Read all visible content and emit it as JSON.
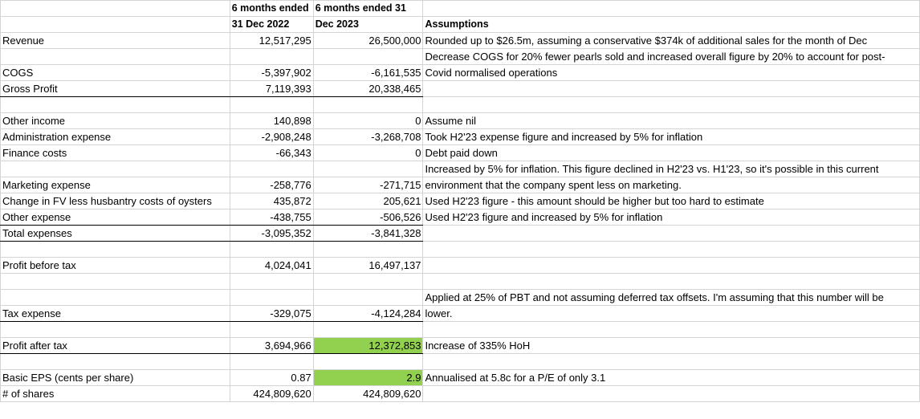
{
  "headers": {
    "col_b": [
      "6 months ended",
      "31 Dec 2022"
    ],
    "col_c": [
      "6 months ended 31",
      "Dec 2023"
    ],
    "col_d": "Assumptions"
  },
  "rows": {
    "revenue": {
      "label": "Revenue",
      "h1": "12,517,295",
      "h2": "26,500,000",
      "note": "Rounded up to $26.5m, assuming a conservative $374k of additional sales for the month of Dec"
    },
    "cogs": {
      "label": "COGS",
      "h1": "-5,397,902",
      "h2": "-6,161,535",
      "note1": "Decrease COGS for 20% fewer pearls sold and increased overall figure by 20% to account for post-",
      "note2": "Covid normalised operations"
    },
    "gross_profit": {
      "label": "Gross Profit",
      "h1": "7,119,393",
      "h2": "20,338,465"
    },
    "other_income": {
      "label": "Other income",
      "h1": "140,898",
      "h2": "0",
      "note": "Assume nil"
    },
    "admin": {
      "label": "Administration expense",
      "h1": "-2,908,248",
      "h2": "-3,268,708",
      "note": "Took H2'23 expense figure and increased by 5% for inflation"
    },
    "finance": {
      "label": "Finance costs",
      "h1": "-66,343",
      "h2": "0",
      "note": "Debt paid down"
    },
    "marketing": {
      "label": "Marketing expense",
      "h1": "-258,776",
      "h2": "-271,715",
      "note1": "Increased by 5% for inflation. This figure declined in H2'23 vs. H1'23, so it's possible in this current",
      "note2": "environment that the company spent less on marketing."
    },
    "fv_change": {
      "label": "Change in FV less husbantry costs of oysters",
      "h1": "435,872",
      "h2": "205,621",
      "note": "Used H2'23 figure - this amount should be higher but too hard to estimate"
    },
    "other_exp": {
      "label": "Other expense",
      "h1": "-438,755",
      "h2": "-506,526",
      "note": "Used H2'23 figure and increased by 5% for inflation"
    },
    "total_exp": {
      "label": "Total expenses",
      "h1": "-3,095,352",
      "h2": "-3,841,328"
    },
    "pbt": {
      "label": "Profit before tax",
      "h1": "4,024,041",
      "h2": "16,497,137"
    },
    "tax": {
      "label": "Tax expense",
      "h1": "-329,075",
      "h2": "-4,124,284",
      "note1": "Applied at 25% of PBT and not assuming deferred tax offsets. I'm assuming that this number will be",
      "note2": "lower."
    },
    "pat": {
      "label": "Profit after tax",
      "h1": "3,694,966",
      "h2": "12,372,853",
      "note": "Increase of 335% HoH"
    },
    "eps": {
      "label": "Basic EPS (cents per share)",
      "h1": "0.87",
      "h2": "2.9",
      "note": "Annualised at 5.8c for a P/E of only 3.1"
    },
    "shares": {
      "label": "# of shares",
      "h1": "424,809,620",
      "h2": "424,809,620"
    }
  },
  "colors": {
    "highlight": "#92d050",
    "gridline": "#d4d4d4"
  }
}
